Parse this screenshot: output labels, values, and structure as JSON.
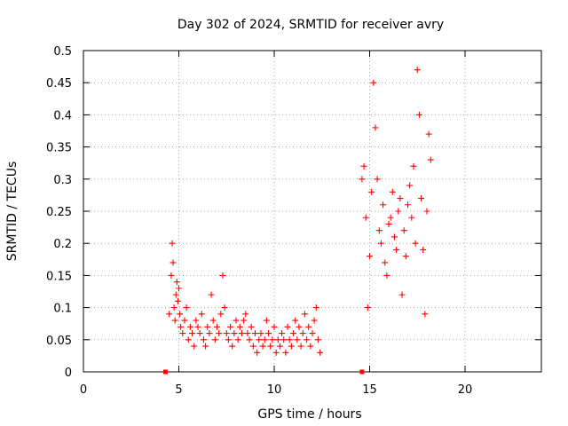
{
  "chart_data": {
    "type": "scatter",
    "title": "Day 302 of 2024, SRMTID for receiver avry",
    "xlabel": "GPS time / hours",
    "ylabel": "SRMTID / TECUs",
    "xlim": [
      0,
      24
    ],
    "ylim": [
      0,
      0.5
    ],
    "xticks": [
      0,
      5,
      10,
      15,
      20
    ],
    "yticks": [
      0,
      0.05,
      0.1,
      0.15,
      0.2,
      0.25,
      0.3,
      0.35,
      0.4,
      0.45,
      0.5
    ],
    "grid": true,
    "marker": "+",
    "color": "#ff0000",
    "zero_markers": [
      4.3,
      14.6
    ],
    "series": [
      {
        "x": [
          4.5,
          4.6,
          4.65,
          4.7,
          4.75,
          4.8,
          4.85,
          4.9,
          4.95,
          5.0,
          5.05,
          5.1,
          5.2,
          5.3,
          5.4,
          5.5,
          5.6,
          5.7,
          5.8,
          5.9,
          6.0,
          6.1,
          6.2,
          6.3,
          6.4,
          6.5,
          6.6,
          6.7,
          6.8,
          6.9,
          7.0,
          7.1,
          7.2,
          7.3,
          7.4,
          7.5,
          7.6,
          7.7,
          7.8,
          7.9,
          8.0,
          8.1,
          8.2,
          8.3,
          8.4,
          8.5,
          8.6,
          8.7,
          8.8,
          8.9,
          9.0,
          9.1,
          9.2,
          9.3,
          9.4,
          9.5,
          9.6,
          9.7,
          9.8,
          9.9,
          10.0,
          10.1,
          10.2,
          10.3,
          10.4,
          10.5,
          10.6,
          10.7,
          10.8,
          10.9,
          11.0,
          11.1,
          11.2,
          11.3,
          11.4,
          11.5,
          11.6,
          11.7,
          11.8,
          11.9,
          12.0,
          12.1,
          12.2,
          12.3,
          12.4
        ],
        "y": [
          0.09,
          0.15,
          0.2,
          0.17,
          0.1,
          0.08,
          0.12,
          0.14,
          0.11,
          0.13,
          0.09,
          0.07,
          0.06,
          0.08,
          0.1,
          0.05,
          0.07,
          0.06,
          0.04,
          0.08,
          0.07,
          0.06,
          0.09,
          0.05,
          0.04,
          0.07,
          0.06,
          0.12,
          0.08,
          0.05,
          0.07,
          0.06,
          0.09,
          0.15,
          0.1,
          0.06,
          0.05,
          0.07,
          0.04,
          0.06,
          0.08,
          0.05,
          0.07,
          0.06,
          0.08,
          0.09,
          0.06,
          0.05,
          0.07,
          0.04,
          0.06,
          0.03,
          0.05,
          0.06,
          0.04,
          0.05,
          0.08,
          0.06,
          0.04,
          0.05,
          0.07,
          0.03,
          0.05,
          0.04,
          0.06,
          0.05,
          0.03,
          0.07,
          0.05,
          0.04,
          0.06,
          0.08,
          0.05,
          0.07,
          0.04,
          0.06,
          0.09,
          0.05,
          0.07,
          0.04,
          0.06,
          0.08,
          0.1,
          0.05,
          0.03
        ]
      },
      {
        "x": [
          14.6,
          14.7,
          14.8,
          14.9,
          15.0,
          15.1,
          15.2,
          15.3,
          15.4,
          15.5,
          15.6,
          15.7,
          15.8,
          15.9,
          16.0,
          16.1,
          16.2,
          16.3,
          16.4,
          16.5,
          16.6,
          16.7,
          16.8,
          16.9,
          17.0,
          17.1,
          17.2,
          17.3,
          17.4,
          17.5,
          17.6,
          17.7,
          17.8,
          17.9,
          18.0,
          18.1,
          18.2
        ],
        "y": [
          0.3,
          0.32,
          0.24,
          0.1,
          0.18,
          0.28,
          0.45,
          0.38,
          0.3,
          0.22,
          0.2,
          0.26,
          0.17,
          0.15,
          0.23,
          0.24,
          0.28,
          0.21,
          0.19,
          0.25,
          0.27,
          0.12,
          0.22,
          0.18,
          0.26,
          0.29,
          0.24,
          0.32,
          0.2,
          0.47,
          0.4,
          0.27,
          0.19,
          0.09,
          0.25,
          0.37,
          0.33
        ]
      }
    ]
  }
}
